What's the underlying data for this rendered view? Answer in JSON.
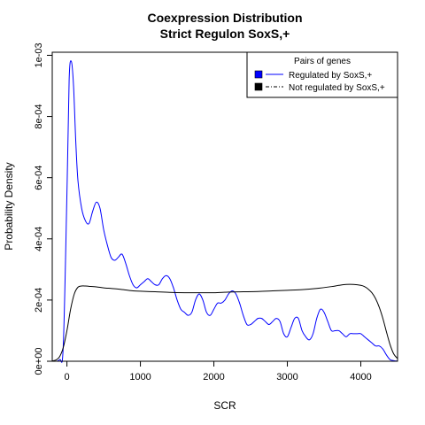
{
  "chart_data": {
    "type": "line",
    "title": "Coexpression Distribution",
    "subtitle": "Strict Regulon SoxS,+",
    "xlabel": "SCR",
    "ylabel": "Probability Density",
    "xlim": [
      -200,
      4500
    ],
    "ylim": [
      0,
      0.00101
    ],
    "x_ticks": [
      0,
      1000,
      2000,
      3000,
      4000
    ],
    "x_tick_labels": [
      "0",
      "1000",
      "2000",
      "3000",
      "4000"
    ],
    "y_ticks": [
      0,
      0.0002,
      0.0004,
      0.0006,
      0.0008,
      0.001
    ],
    "y_tick_labels": [
      "0e+00",
      "2e-04",
      "4e-04",
      "6e-04",
      "8e-04",
      "1e-03"
    ],
    "grid": false,
    "legend": {
      "title": "Pairs of genes",
      "placement": "top-right"
    },
    "series": [
      {
        "name": "Regulated by  SoxS,+",
        "color": "#0000ff",
        "line_style": "solid",
        "x": [
          -200,
          -100,
          -50,
          0,
          30,
          60,
          90,
          120,
          150,
          200,
          250,
          300,
          350,
          400,
          450,
          500,
          550,
          600,
          650,
          700,
          750,
          800,
          850,
          900,
          950,
          1000,
          1050,
          1100,
          1150,
          1200,
          1250,
          1300,
          1350,
          1400,
          1450,
          1500,
          1550,
          1600,
          1650,
          1700,
          1750,
          1800,
          1850,
          1900,
          1950,
          2000,
          2050,
          2100,
          2150,
          2200,
          2250,
          2300,
          2350,
          2400,
          2450,
          2500,
          2550,
          2600,
          2650,
          2700,
          2750,
          2800,
          2850,
          2900,
          2950,
          3000,
          3050,
          3100,
          3150,
          3200,
          3250,
          3300,
          3350,
          3400,
          3450,
          3500,
          3550,
          3600,
          3650,
          3700,
          3750,
          3800,
          3850,
          3900,
          3950,
          4000,
          4050,
          4100,
          4150,
          4200,
          4250,
          4300,
          4350,
          4400,
          4450,
          4500
        ],
        "y": [
          3e-07,
          5e-06,
          5e-05,
          0.00055,
          0.00092,
          0.00098,
          0.0009,
          0.00072,
          0.00059,
          0.0005,
          0.00046,
          0.00045,
          0.00049,
          0.00052,
          0.0005,
          0.00043,
          0.00038,
          0.00034,
          0.00033,
          0.00034,
          0.00035,
          0.00032,
          0.00028,
          0.00025,
          0.00024,
          0.00025,
          0.00026,
          0.00027,
          0.00026,
          0.00025,
          0.00025,
          0.00027,
          0.00028,
          0.00027,
          0.00024,
          0.0002,
          0.00017,
          0.00016,
          0.00015,
          0.00016,
          0.0002,
          0.00022,
          0.0002,
          0.00016,
          0.00015,
          0.00017,
          0.00019,
          0.00019,
          0.0002,
          0.00022,
          0.00023,
          0.00022,
          0.00019,
          0.00015,
          0.00012,
          0.00012,
          0.00013,
          0.00014,
          0.00014,
          0.00013,
          0.00012,
          0.00013,
          0.00014,
          0.00013,
          9e-05,
          8e-05,
          0.00011,
          0.00014,
          0.00014,
          0.0001,
          8e-05,
          7e-05,
          9e-05,
          0.00014,
          0.00017,
          0.00016,
          0.00013,
          0.0001,
          0.0001,
          0.0001,
          9e-05,
          8e-05,
          9e-05,
          9e-05,
          9e-05,
          9e-05,
          8e-05,
          7e-05,
          6e-05,
          5e-05,
          5e-05,
          4e-05,
          2e-05,
          5e-06,
          2e-06,
          3e-07
        ]
      },
      {
        "name": "Not regulated by  SoxS,+",
        "color": "#000000",
        "line_style": "dashdot",
        "x": [
          -200,
          -150,
          -100,
          -50,
          0,
          50,
          100,
          150,
          200,
          250,
          300,
          400,
          500,
          600,
          700,
          800,
          900,
          1000,
          1200,
          1400,
          1600,
          1800,
          2000,
          2200,
          2400,
          2600,
          2800,
          3000,
          3200,
          3400,
          3600,
          3700,
          3800,
          3900,
          4000,
          4050,
          4100,
          4150,
          4200,
          4250,
          4300,
          4350,
          4400,
          4450,
          4500
        ],
        "y": [
          1e-06,
          4e-06,
          1.5e-05,
          4.5e-05,
          0.0001,
          0.00017,
          0.00022,
          0.000242,
          0.000246,
          0.000246,
          0.000245,
          0.000243,
          0.00024,
          0.000238,
          0.000236,
          0.000233,
          0.00023,
          0.000229,
          0.000227,
          0.000225,
          0.000224,
          0.000224,
          0.000224,
          0.000226,
          0.000227,
          0.000228,
          0.00023,
          0.000232,
          0.000234,
          0.000238,
          0.000244,
          0.000248,
          0.000251,
          0.000251,
          0.000248,
          0.000244,
          0.000236,
          0.000224,
          0.000205,
          0.000177,
          0.00014,
          9.5e-05,
          5.3e-05,
          2.3e-05,
          9e-06
        ]
      }
    ]
  }
}
